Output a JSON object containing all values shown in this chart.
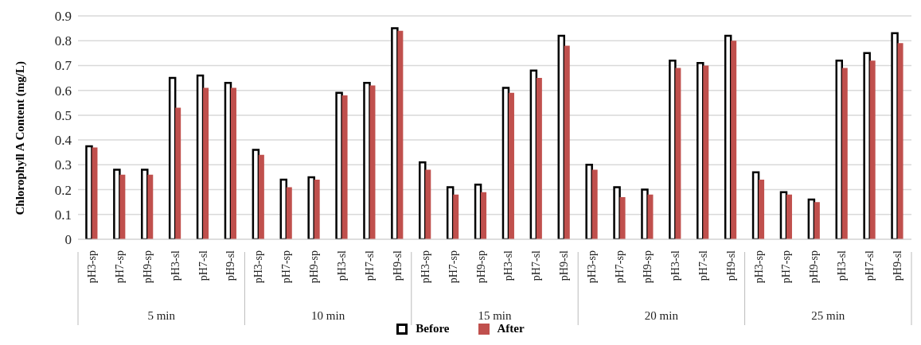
{
  "chart_data": {
    "type": "bar",
    "ylabel": "Chlorophyll A Content  (mg/L)",
    "categories": [
      "pH3-sp",
      "pH7-sp",
      "pH9-sp",
      "pH3-sl",
      "pH7-sl",
      "pH9-sl",
      "pH3-sp",
      "pH7-sp",
      "pH9-sp",
      "pH3-sl",
      "pH7-sl",
      "pH9-sl",
      "pH3-sp",
      "pH7-sp",
      "pH9-sp",
      "pH3-sl",
      "pH7-sl",
      "pH9-sl",
      "pH3-sp",
      "pH7-sp",
      "pH9-sp",
      "pH3-sl",
      "pH7-sl",
      "pH9-sl",
      "pH3-sp",
      "pH7-sp",
      "pH9-sp",
      "pH3-sl",
      "pH7-sl",
      "pH9-sl"
    ],
    "annotations": [
      "5 min",
      "10 min",
      "15 min",
      "20 min",
      "25 min"
    ],
    "series": [
      {
        "name": "Before",
        "color": "#ffffff",
        "values": [
          0.375,
          0.28,
          0.28,
          0.65,
          0.66,
          0.63,
          0.36,
          0.24,
          0.25,
          0.59,
          0.63,
          0.85,
          0.31,
          0.21,
          0.22,
          0.61,
          0.68,
          0.82,
          0.3,
          0.21,
          0.2,
          0.72,
          0.71,
          0.82,
          0.27,
          0.19,
          0.16,
          0.72,
          0.75,
          0.83
        ]
      },
      {
        "name": "After",
        "color": "#c0504d",
        "values": [
          0.37,
          0.26,
          0.26,
          0.53,
          0.61,
          0.61,
          0.34,
          0.21,
          0.24,
          0.58,
          0.62,
          0.84,
          0.28,
          0.18,
          0.19,
          0.59,
          0.65,
          0.78,
          0.28,
          0.17,
          0.18,
          0.69,
          0.7,
          0.8,
          0.24,
          0.18,
          0.15,
          0.69,
          0.72,
          0.79
        ]
      }
    ],
    "ylim": [
      0,
      0.9
    ],
    "yticks": [
      0,
      0.1,
      0.2,
      0.3,
      0.4,
      0.5,
      0.6,
      0.7,
      0.8,
      0.9
    ],
    "grid": "y",
    "legend": "bottom"
  }
}
